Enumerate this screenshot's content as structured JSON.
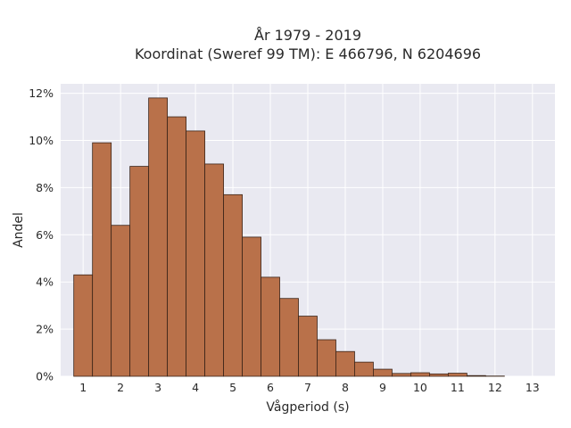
{
  "chart_data": {
    "type": "bar",
    "title_line1": "År 1979 - 2019",
    "title_line2": "Koordinat (Sweref 99 TM): E 466796, N 6204696",
    "xlabel": "Vågperiod (s)",
    "ylabel": "Andel",
    "x_ticks": [
      "1",
      "2",
      "3",
      "4",
      "5",
      "6",
      "7",
      "8",
      "9",
      "10",
      "11",
      "12",
      "13"
    ],
    "x_tick_values": [
      1,
      2,
      3,
      4,
      5,
      6,
      7,
      8,
      9,
      10,
      11,
      12,
      13
    ],
    "y_ticks": [
      "0%",
      "2%",
      "4%",
      "6%",
      "8%",
      "10%",
      "12%"
    ],
    "y_tick_values": [
      0,
      2,
      4,
      6,
      8,
      10,
      12
    ],
    "xlim": [
      0.4,
      13.6
    ],
    "ylim": [
      0,
      12.4
    ],
    "bin_width": 0.5,
    "bins": [
      {
        "x": 1.0,
        "value": 4.3
      },
      {
        "x": 1.5,
        "value": 9.9
      },
      {
        "x": 2.0,
        "value": 6.4
      },
      {
        "x": 2.5,
        "value": 8.9
      },
      {
        "x": 3.0,
        "value": 11.8
      },
      {
        "x": 3.5,
        "value": 11.0
      },
      {
        "x": 4.0,
        "value": 10.4
      },
      {
        "x": 4.5,
        "value": 9.0
      },
      {
        "x": 5.0,
        "value": 7.7
      },
      {
        "x": 5.5,
        "value": 5.9
      },
      {
        "x": 6.0,
        "value": 4.2
      },
      {
        "x": 6.5,
        "value": 3.3
      },
      {
        "x": 7.0,
        "value": 2.55
      },
      {
        "x": 7.5,
        "value": 1.55
      },
      {
        "x": 8.0,
        "value": 1.05
      },
      {
        "x": 8.5,
        "value": 0.6
      },
      {
        "x": 9.0,
        "value": 0.3
      },
      {
        "x": 9.5,
        "value": 0.12
      },
      {
        "x": 10.0,
        "value": 0.15
      },
      {
        "x": 10.5,
        "value": 0.1
      },
      {
        "x": 11.0,
        "value": 0.13
      },
      {
        "x": 11.5,
        "value": 0.03
      },
      {
        "x": 12.0,
        "value": 0.01
      }
    ],
    "grid": true,
    "colors": {
      "bar": "#b9714a",
      "plot_background": "#e9e9f1",
      "grid": "#ffffff"
    }
  }
}
